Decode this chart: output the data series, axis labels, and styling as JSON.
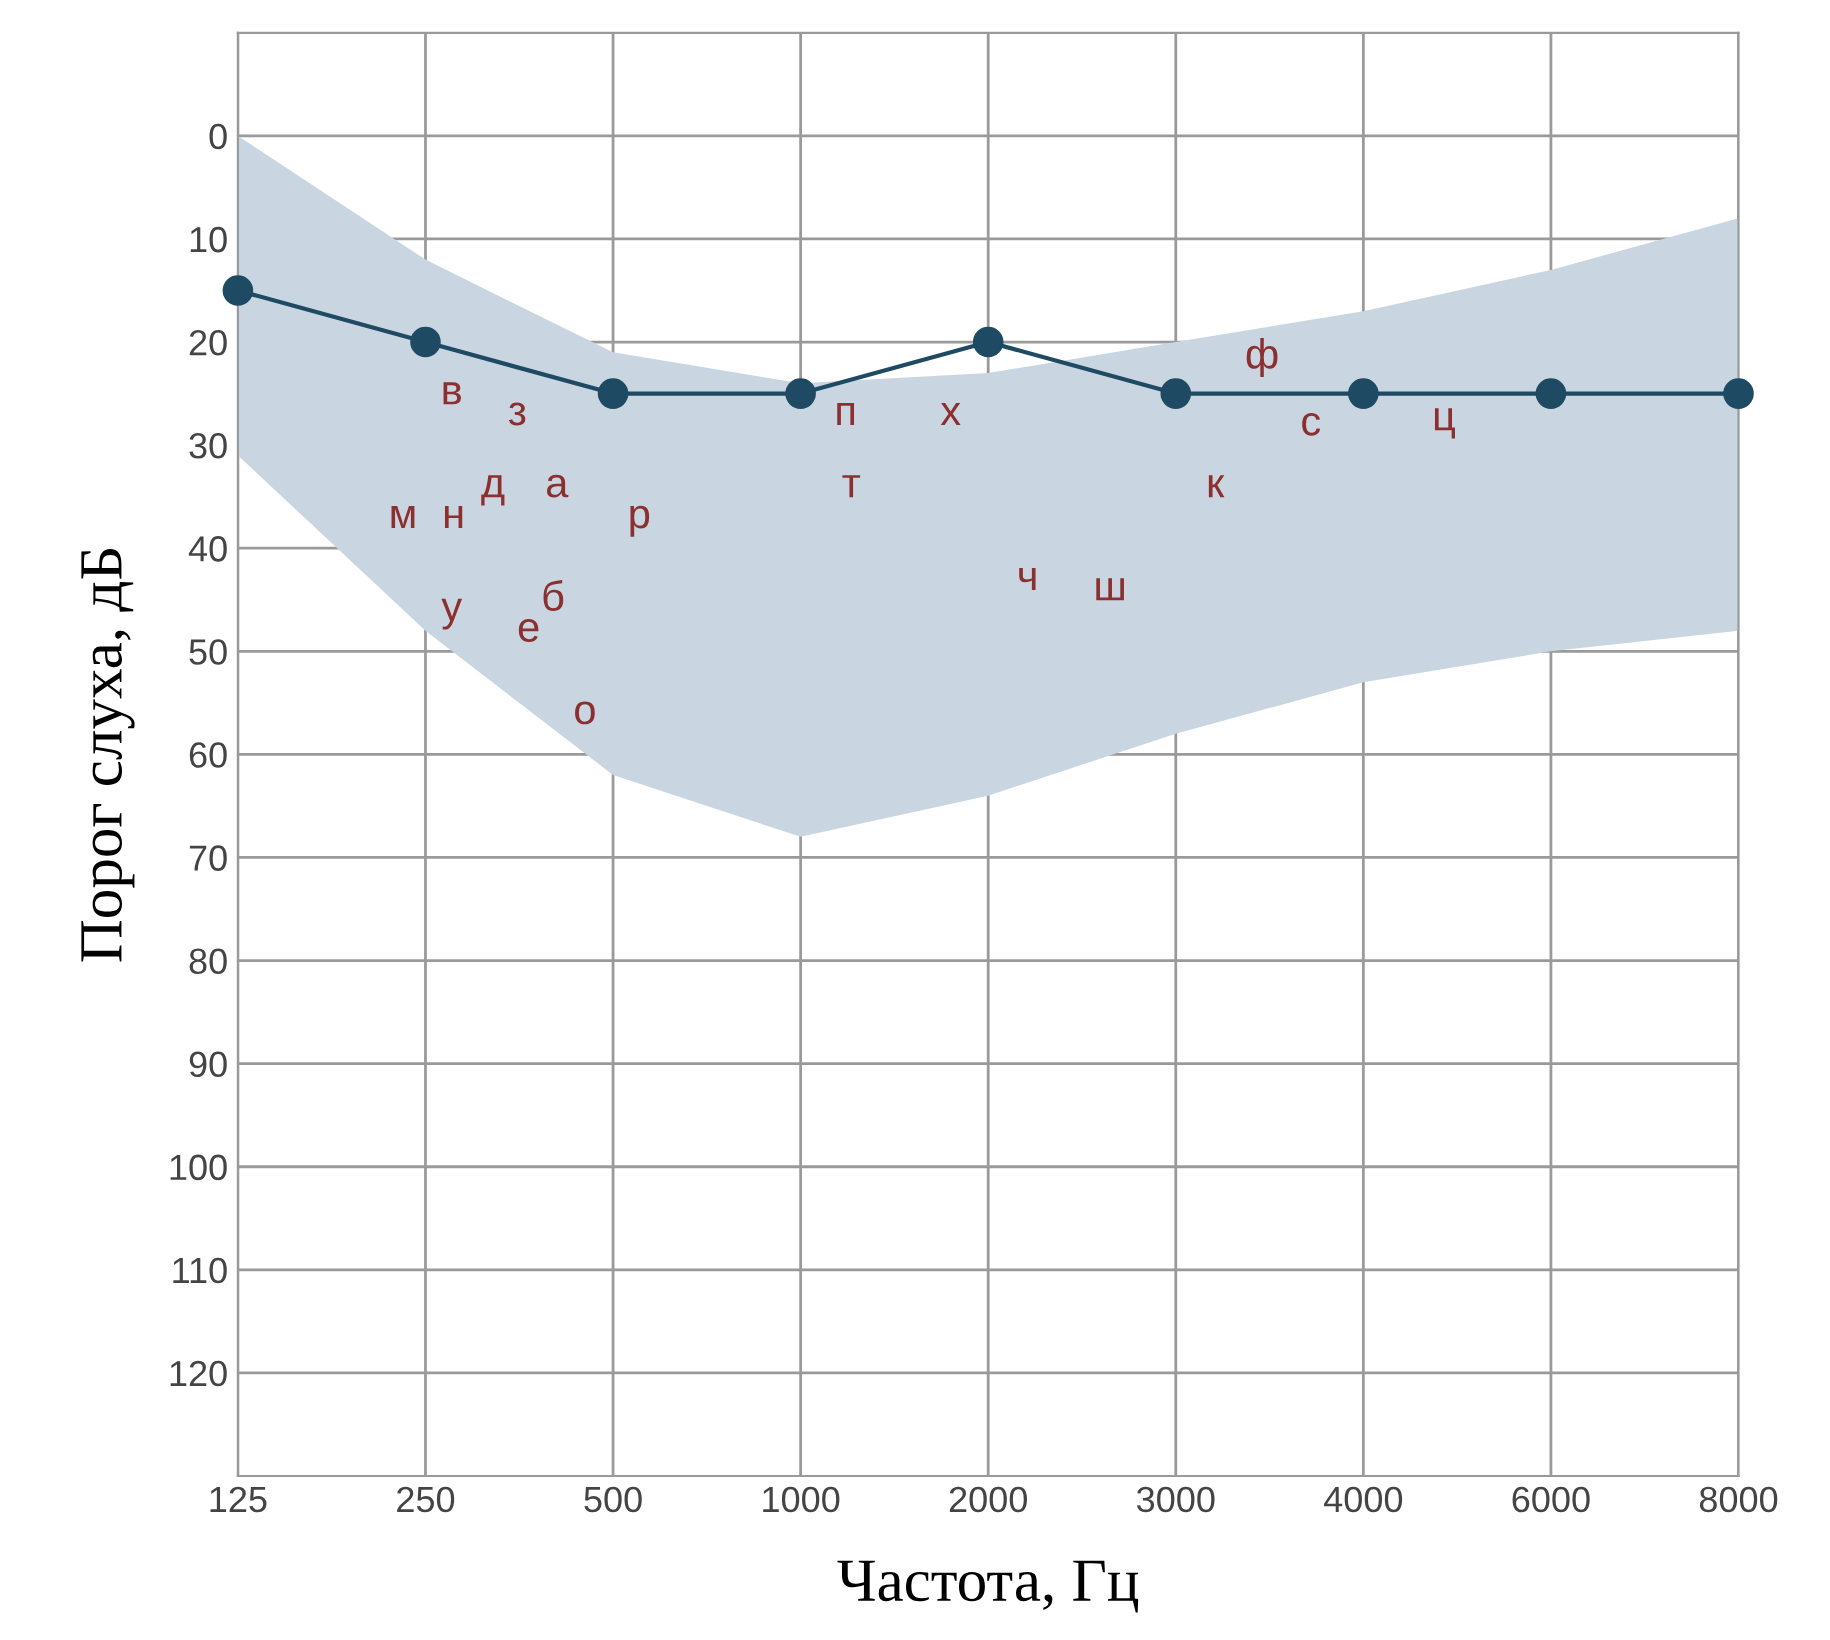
{
  "chart_data": {
    "type": "line",
    "xlabel": "Частота, Гц",
    "ylabel": "Порог слуха, дБ",
    "categories": [
      "125",
      "250",
      "500",
      "1000",
      "2000",
      "3000",
      "4000",
      "6000",
      "8000"
    ],
    "ylim": [
      130,
      -10
    ],
    "yticks": [
      0,
      10,
      20,
      30,
      40,
      50,
      60,
      70,
      80,
      90,
      100,
      110,
      120
    ],
    "grid": true,
    "marker": "circle",
    "line_style": "solid",
    "series": [
      {
        "color": "#1f4a63",
        "values": [
          15,
          20,
          25,
          25,
          20,
          25,
          25,
          25,
          25
        ],
        "lower": [
          0,
          12,
          21,
          24,
          23,
          20,
          17,
          13,
          8
        ],
        "upper": [
          31,
          48,
          62,
          68,
          64,
          58,
          53,
          50,
          48
        ]
      }
    ],
    "annotations": [
      "в",
      "з",
      "м",
      "н",
      "д",
      "а",
      "р",
      "у",
      "е",
      "б",
      "о",
      "п",
      "т",
      "х",
      "ч",
      "ш",
      "к",
      "ф",
      "с",
      "ц"
    ]
  }
}
